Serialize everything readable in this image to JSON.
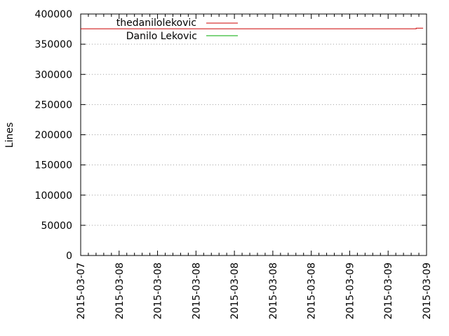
{
  "chart_data": {
    "type": "line",
    "title": "",
    "xlabel": "",
    "ylabel": "Lines",
    "ylim": [
      0,
      400000
    ],
    "yticks": [
      0,
      50000,
      100000,
      150000,
      200000,
      250000,
      300000,
      350000,
      400000
    ],
    "ytick_labels": [
      "0",
      "50000",
      "100000",
      "150000",
      "200000",
      "250000",
      "300000",
      "350000",
      "400000"
    ],
    "xticks": [
      "2015-03-07",
      "2015-03-08",
      "2015-03-08",
      "2015-03-08",
      "2015-03-08",
      "2015-03-08",
      "2015-03-08",
      "2015-03-09",
      "2015-03-09",
      "2015-03-09"
    ],
    "grid": "horizontal dotted",
    "legend_position": "top-left",
    "series": [
      {
        "name": "thedanilolekovic",
        "color": "#cc0000",
        "points": [
          {
            "x": 0.0,
            "y": 375500
          },
          {
            "x": 0.97,
            "y": 375500
          },
          {
            "x": 0.97,
            "y": 376500
          },
          {
            "x": 0.99,
            "y": 376500
          }
        ]
      },
      {
        "name": "Danilo Lekovic",
        "color": "#00aa00",
        "points": []
      }
    ]
  }
}
